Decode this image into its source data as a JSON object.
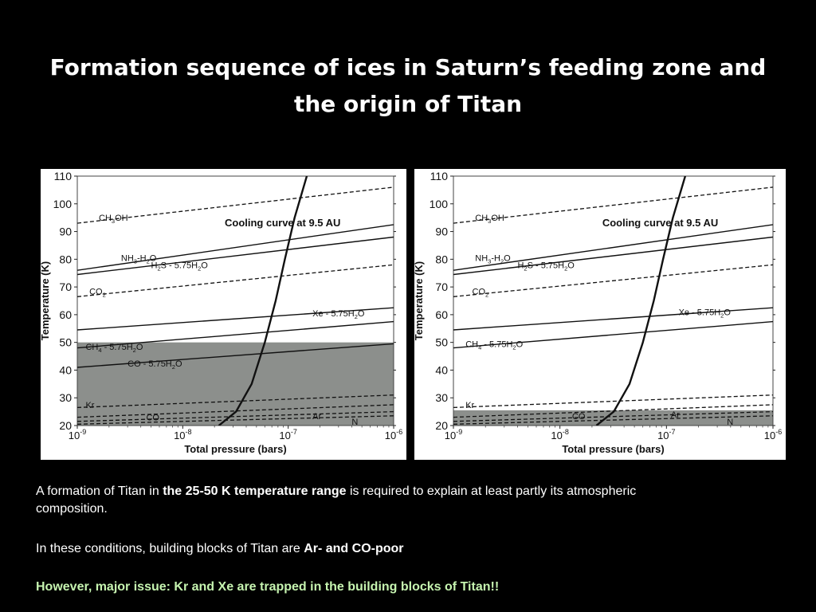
{
  "slide": {
    "title_line1": "Formation sequence of ices in Saturn’s feeding zone and",
    "title_line2": "the origin of Titan"
  },
  "text": {
    "p1_a": "A formation of Titan in ",
    "p1_b": "the 25-50 K temperature range",
    "p1_c": " is required to explain at least partly its atmospheric",
    "p1_d": "composition.",
    "p2_a": "In these conditions, building blocks of Titan are ",
    "p2_b": "Ar- and CO-poor",
    "p3": "However, major issue: Kr and Xe are trapped in the building blocks of Titan!!"
  },
  "chart_data": [
    {
      "type": "line",
      "xlabel": "Total pressure (bars)",
      "ylabel": "Temperature (K)",
      "x_scale": "log",
      "xlim": [
        1e-09,
        1e-06
      ],
      "ylim": [
        20,
        110
      ],
      "x_ticks": [
        1e-09,
        1e-08,
        1e-07,
        1e-06
      ],
      "y_ticks": [
        20,
        30,
        40,
        50,
        60,
        70,
        80,
        90,
        100,
        110
      ],
      "shaded_range": [
        20,
        50
      ],
      "series": [
        {
          "name": "CH3OH",
          "style": "dashed",
          "points": [
            [
              1e-09,
              93
            ],
            [
              1e-06,
              106
            ]
          ]
        },
        {
          "name": "NH3-H2O",
          "style": "solid",
          "points": [
            [
              1e-09,
              76
            ],
            [
              1e-06,
              92.5
            ]
          ]
        },
        {
          "name": "H2S - 5.75H2O",
          "style": "solid",
          "points": [
            [
              1e-09,
              74.5
            ],
            [
              1e-06,
              88
            ]
          ]
        },
        {
          "name": "CO2",
          "style": "dashed",
          "points": [
            [
              1e-09,
              66.5
            ],
            [
              1e-06,
              78
            ]
          ]
        },
        {
          "name": "Xe - 5.75H2O",
          "style": "solid",
          "points": [
            [
              1e-09,
              54.5
            ],
            [
              1e-06,
              62.5
            ]
          ]
        },
        {
          "name": "CH4 - 5.75H2O",
          "style": "solid",
          "points": [
            [
              1e-09,
              48
            ],
            [
              1e-06,
              57.5
            ]
          ]
        },
        {
          "name": "CO - 5.75H2O",
          "style": "solid",
          "points": [
            [
              1e-09,
              41
            ],
            [
              1e-06,
              49.5
            ]
          ]
        },
        {
          "name": "Kr",
          "style": "dashed",
          "points": [
            [
              1e-09,
              26.5
            ],
            [
              1e-06,
              31
            ]
          ]
        },
        {
          "name": "CO",
          "style": "dashed",
          "points": [
            [
              1e-09,
              23
            ],
            [
              1e-06,
              27.5
            ]
          ]
        },
        {
          "name": "Ar",
          "style": "dashed",
          "points": [
            [
              1e-09,
              21.5
            ],
            [
              1e-06,
              25
            ]
          ]
        },
        {
          "name": "N",
          "style": "dashed",
          "points": [
            [
              1e-09,
              20.5
            ],
            [
              1e-06,
              23.5
            ]
          ]
        },
        {
          "name": "Cooling curve at 9.5 AU",
          "style": "bold",
          "points": [
            [
              2.2e-08,
              20
            ],
            [
              3.2e-08,
              25
            ],
            [
              4.5e-08,
              35
            ],
            [
              6e-08,
              50
            ],
            [
              7.6e-08,
              65
            ],
            [
              9.3e-08,
              80
            ],
            [
              1.15e-07,
              95
            ],
            [
              1.5e-07,
              110
            ]
          ]
        }
      ]
    },
    {
      "type": "line",
      "xlabel": "Total pressure (bars)",
      "ylabel": "Temperature (K)",
      "x_scale": "log",
      "xlim": [
        1e-09,
        1e-06
      ],
      "ylim": [
        20,
        110
      ],
      "x_ticks": [
        1e-09,
        1e-08,
        1e-07,
        1e-06
      ],
      "y_ticks": [
        20,
        30,
        40,
        50,
        60,
        70,
        80,
        90,
        100,
        110
      ],
      "shaded_range": [
        20,
        25.5
      ],
      "series": [
        {
          "name": "CH3OH",
          "style": "dashed",
          "points": [
            [
              1e-09,
              93
            ],
            [
              1e-06,
              106
            ]
          ]
        },
        {
          "name": "NH3-H2O",
          "style": "solid",
          "points": [
            [
              1e-09,
              76
            ],
            [
              1e-06,
              92.5
            ]
          ]
        },
        {
          "name": "H2S - 5.75H2O",
          "style": "solid",
          "points": [
            [
              1e-09,
              74.5
            ],
            [
              1e-06,
              88
            ]
          ]
        },
        {
          "name": "CO2",
          "style": "dashed",
          "points": [
            [
              1e-09,
              66.5
            ],
            [
              1e-06,
              78
            ]
          ]
        },
        {
          "name": "Xe - 5.75H2O",
          "style": "solid",
          "points": [
            [
              1e-09,
              54.5
            ],
            [
              1e-06,
              62.5
            ]
          ]
        },
        {
          "name": "CH4 - 5.75H2O",
          "style": "solid",
          "points": [
            [
              1e-09,
              48
            ],
            [
              1e-06,
              57.5
            ]
          ]
        },
        {
          "name": "Kr",
          "style": "dashed",
          "points": [
            [
              1e-09,
              26.5
            ],
            [
              1e-06,
              31
            ]
          ]
        },
        {
          "name": "CO",
          "style": "dashed",
          "points": [
            [
              1e-09,
              23
            ],
            [
              1e-06,
              27.5
            ]
          ]
        },
        {
          "name": "Ar",
          "style": "dashed",
          "points": [
            [
              1e-09,
              21.5
            ],
            [
              1e-06,
              25
            ]
          ]
        },
        {
          "name": "N",
          "style": "dashed",
          "points": [
            [
              1e-09,
              20.5
            ],
            [
              1e-06,
              23.5
            ]
          ]
        },
        {
          "name": "Cooling curve at 9.5 AU",
          "style": "bold",
          "points": [
            [
              2.2e-08,
              20
            ],
            [
              3.2e-08,
              25
            ],
            [
              4.5e-08,
              35
            ],
            [
              6e-08,
              50
            ],
            [
              7.6e-08,
              65
            ],
            [
              9.3e-08,
              80
            ],
            [
              1.15e-07,
              95
            ],
            [
              1.5e-07,
              110
            ]
          ]
        }
      ]
    }
  ]
}
